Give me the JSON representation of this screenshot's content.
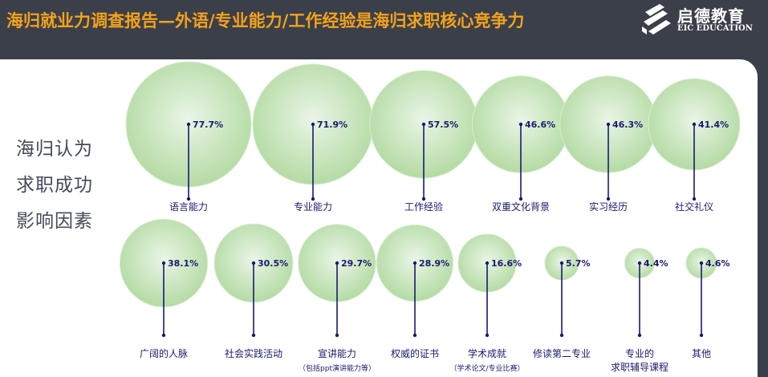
{
  "header": {
    "title": "海归就业力调查报告—外语/专业能力/工作经验是海归求职核心竞争力"
  },
  "logo": {
    "name_cn": "启德教育",
    "name_en": "EIC EDUCATION"
  },
  "side_label": [
    "海归认为",
    "求职成功",
    "影响因素"
  ],
  "colors": {
    "background": "#3a3f4a",
    "title": "#f4a21a",
    "stem": "#1a1a6e",
    "label": "#1a1a6e",
    "bubble_outer": "#eaf5e6",
    "bubble_inner": "#b4dba4"
  },
  "chart_data": {
    "type": "bubble",
    "unit": "%",
    "series": [
      {
        "category": "语言能力",
        "value": 77.7,
        "value_label": "77.7%"
      },
      {
        "category": "专业能力",
        "value": 71.9,
        "value_label": "71.9%"
      },
      {
        "category": "工作经验",
        "value": 57.5,
        "value_label": "57.5%"
      },
      {
        "category": "双重文化背景",
        "value": 46.6,
        "value_label": "46.6%"
      },
      {
        "category": "实习经历",
        "value": 46.3,
        "value_label": "46.3%"
      },
      {
        "category": "社交礼仪",
        "value": 41.4,
        "value_label": "41.4%"
      },
      {
        "category": "广阔的人脉",
        "value": 38.1,
        "value_label": "38.1%"
      },
      {
        "category": "社会实践活动",
        "value": 30.5,
        "value_label": "30.5%"
      },
      {
        "category": "宣讲能力",
        "sublabel": "（包括ppt演讲能力等）",
        "value": 29.7,
        "value_label": "29.7%"
      },
      {
        "category": "权威的证书",
        "value": 28.9,
        "value_label": "28.9%"
      },
      {
        "category": "学术成就",
        "sublabel": "（学术论文/专业比赛）",
        "value": 16.6,
        "value_label": "16.6%"
      },
      {
        "category": "修读第二专业",
        "value": 5.7,
        "value_label": "5.7%"
      },
      {
        "category": "专业的",
        "sublabel": "求职辅导课程",
        "value": 4.4,
        "value_label": "4.4%"
      },
      {
        "category": "其他",
        "value": 4.6,
        "value_label": "4.6%"
      }
    ]
  }
}
